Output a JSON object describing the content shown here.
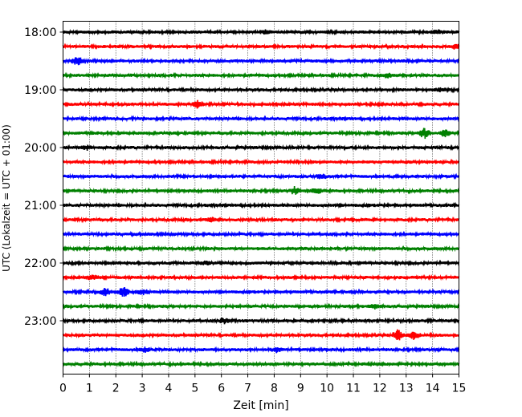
{
  "chart_data": {
    "type": "line",
    "title": "",
    "xlabel": "Zeit  [min]",
    "ylabel": "UTC (Lokalzeit = UTC + 01:00)",
    "xlim": [
      0,
      15
    ],
    "x_ticks": [
      "0",
      "1",
      "2",
      "3",
      "4",
      "5",
      "6",
      "7",
      "8",
      "9",
      "10",
      "11",
      "12",
      "13",
      "14",
      "15"
    ],
    "y_tick_labels": [
      "18:00",
      "19:00",
      "20:00",
      "21:00",
      "22:00",
      "23:00"
    ],
    "grid": "vertical dotted at each minute",
    "trace_interval_min": 15,
    "color_cycle": [
      "#000000",
      "#ff0000",
      "#0000ff",
      "#008000"
    ],
    "traces": [
      {
        "start": "18:00",
        "events": [
          {
            "t": 14.2,
            "amp": 0.35
          },
          {
            "t": 7.7,
            "amp": 0.25
          }
        ]
      },
      {
        "start": "18:15",
        "events": [
          {
            "t": 14.9,
            "amp": 0.3
          }
        ]
      },
      {
        "start": "18:30",
        "events": [
          {
            "t": 0.55,
            "amp": 0.7
          }
        ]
      },
      {
        "start": "18:45",
        "events": [
          {
            "t": 12.3,
            "amp": 0.3
          }
        ]
      },
      {
        "start": "19:00",
        "events": [
          {
            "t": 14.3,
            "amp": 0.25
          }
        ]
      },
      {
        "start": "19:15",
        "events": [
          {
            "t": 5.1,
            "amp": 0.55
          }
        ]
      },
      {
        "start": "19:30",
        "events": []
      },
      {
        "start": "19:45",
        "events": [
          {
            "t": 13.7,
            "amp": 0.8
          },
          {
            "t": 14.5,
            "amp": 0.6
          }
        ]
      },
      {
        "start": "20:00",
        "events": [
          {
            "t": 0.9,
            "amp": 0.3
          }
        ]
      },
      {
        "start": "20:15",
        "events": []
      },
      {
        "start": "20:30",
        "events": [
          {
            "t": 9.8,
            "amp": 0.3
          }
        ]
      },
      {
        "start": "20:45",
        "events": [
          {
            "t": 8.8,
            "amp": 0.5
          },
          {
            "t": 9.6,
            "amp": 0.4
          }
        ]
      },
      {
        "start": "21:00",
        "events": []
      },
      {
        "start": "21:15",
        "events": [
          {
            "t": 5.6,
            "amp": 0.3
          }
        ]
      },
      {
        "start": "21:30",
        "events": []
      },
      {
        "start": "21:45",
        "events": []
      },
      {
        "start": "22:00",
        "events": [
          {
            "t": 5.4,
            "amp": 0.25
          }
        ]
      },
      {
        "start": "22:15",
        "events": [
          {
            "t": 1.1,
            "amp": 0.3
          }
        ]
      },
      {
        "start": "22:30",
        "events": [
          {
            "t": 1.6,
            "amp": 0.5
          },
          {
            "t": 2.3,
            "amp": 0.75
          },
          {
            "t": 3.0,
            "amp": 0.45
          }
        ]
      },
      {
        "start": "22:45",
        "events": [
          {
            "t": 11.8,
            "amp": 0.35
          }
        ]
      },
      {
        "start": "23:00",
        "events": [
          {
            "t": 6.1,
            "amp": 0.35
          }
        ]
      },
      {
        "start": "23:15",
        "events": [
          {
            "t": 12.7,
            "amp": 0.8
          },
          {
            "t": 13.3,
            "amp": 0.55
          }
        ]
      },
      {
        "start": "23:30",
        "events": [
          {
            "t": 8.1,
            "amp": 0.4
          },
          {
            "t": 3.1,
            "amp": 0.3
          }
        ]
      },
      {
        "start": "23:45",
        "events": []
      }
    ]
  }
}
